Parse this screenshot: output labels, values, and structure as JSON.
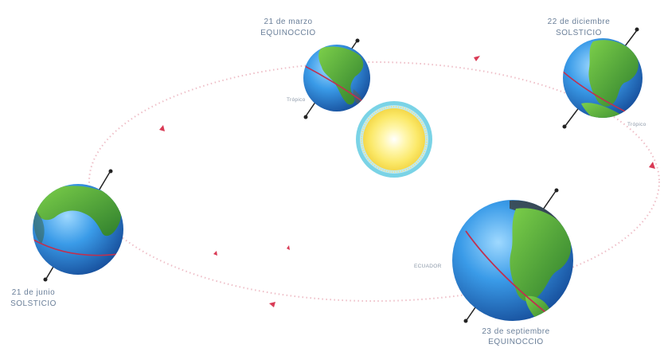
{
  "diagram": {
    "positions": [
      {
        "date": "21 de marzo",
        "event": "EQUINOCCIO"
      },
      {
        "date": "22 de diciembre",
        "event": "SOLSTICIO"
      },
      {
        "date": "21 de junio",
        "event": "SOLSTICIO"
      },
      {
        "date": "23 de septiembre",
        "event": "EQUINOCCIO"
      }
    ],
    "tiny_labels": [
      "Trópico",
      "ECUADOR",
      "Trópico"
    ],
    "colors": {
      "orbit": "#e8a9b4",
      "arrow": "#d93a55",
      "ocean": "#2d8fe0",
      "land": "#4aa43a",
      "sun": "#fbe96a",
      "sun_ring": "#7ad3e6",
      "axis": "#222222",
      "equator": "#c0304f"
    }
  }
}
